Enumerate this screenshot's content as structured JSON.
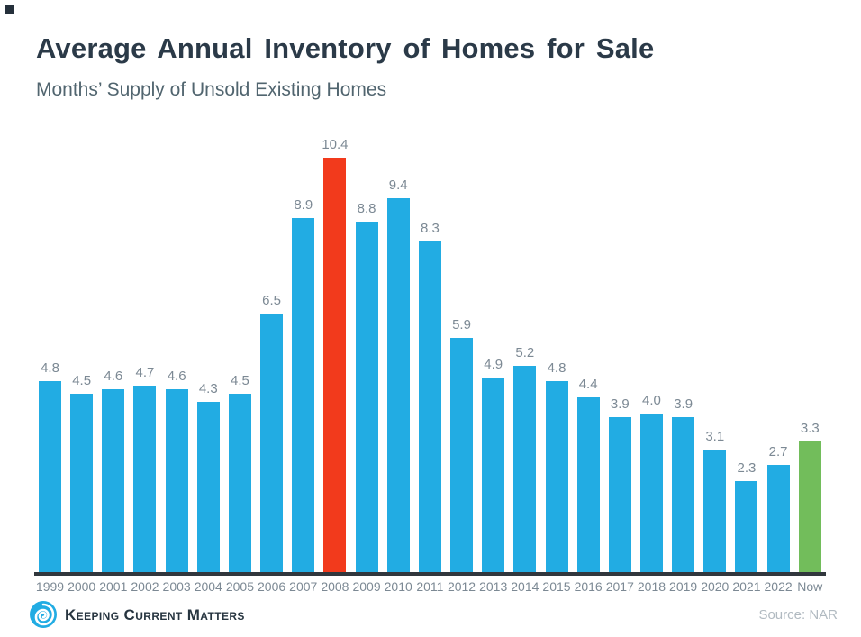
{
  "chart_data": {
    "type": "bar",
    "title": "Average Annual Inventory of Homes for Sale",
    "subtitle": "Months’ Supply of Unsold Existing Homes",
    "xlabel": "",
    "ylabel": "",
    "categories": [
      "1999",
      "2000",
      "2001",
      "2002",
      "2003",
      "2004",
      "2005",
      "2006",
      "2007",
      "2008",
      "2009",
      "2010",
      "2011",
      "2012",
      "2013",
      "2014",
      "2015",
      "2016",
      "2017",
      "2018",
      "2019",
      "2020",
      "2021",
      "2022",
      "Now"
    ],
    "values": [
      4.8,
      4.5,
      4.6,
      4.7,
      4.6,
      4.3,
      4.5,
      6.5,
      8.9,
      10.4,
      8.8,
      9.4,
      8.3,
      5.9,
      4.9,
      5.2,
      4.8,
      4.4,
      3.9,
      4.0,
      3.9,
      3.1,
      2.3,
      2.7,
      3.3
    ],
    "value_labels": [
      "4.8",
      "4.5",
      "4.6",
      "4.7",
      "4.6",
      "4.3",
      "4.5",
      "6.5",
      "8.9",
      "10.4",
      "8.8",
      "9.4",
      "8.3",
      "5.9",
      "4.9",
      "5.2",
      "4.8",
      "4.4",
      "3.9",
      "4.0",
      "3.9",
      "3.1",
      "2.3",
      "2.7",
      "3.3"
    ],
    "ylim": [
      0,
      11.2
    ],
    "grid": false,
    "legend": false,
    "bar_color_default": "#22ace3",
    "highlights": [
      {
        "category": "2008",
        "color": "#f23a1c"
      },
      {
        "category": "Now",
        "color": "#72bd5b"
      }
    ],
    "axis_line_color": "#31373d",
    "label_color": "#7c8994"
  },
  "footer": {
    "brand": "Keeping Current Matters",
    "source": "Source: NAR"
  },
  "icons": {
    "logo": "kcm-swirl-logo"
  }
}
